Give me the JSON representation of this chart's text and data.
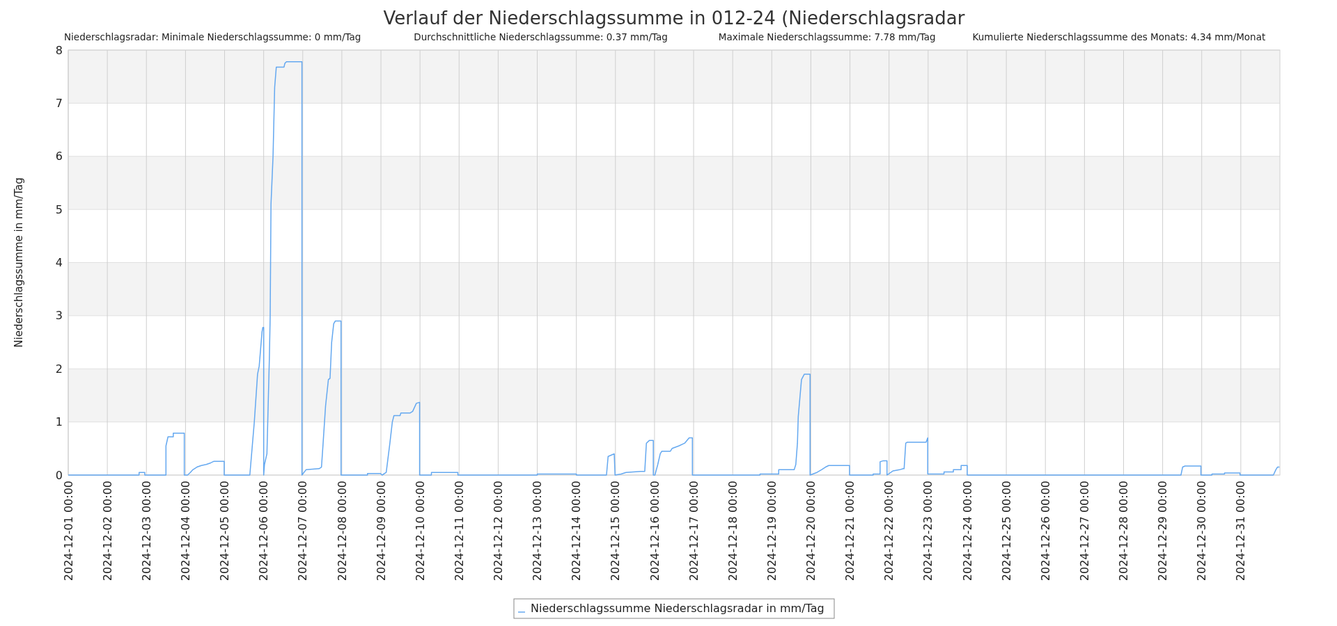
{
  "chart_data": {
    "type": "line",
    "title": "Verlauf der Niederschlagssumme in 012-24 (Niederschlagsradar",
    "annotations": [
      "Niederschlagsradar: Minimale Niederschlagssumme: 0 mm/Tag",
      "Durchschnittliche Niederschlagssumme: 0.37 mm/Tag",
      "Maximale Niederschlagssumme: 7.78 mm/Tag",
      "Kumulierte Niederschlagssumme des Monats: 4.34 mm/Monat"
    ],
    "ylabel": "Niederschlagssumme in mm/Tag",
    "ylim": [
      0,
      8
    ],
    "yticks": [
      0,
      1,
      2,
      3,
      4,
      5,
      6,
      7,
      8
    ],
    "xlim": [
      "2024-12-01T00:00",
      "2025-01-01T00:00"
    ],
    "xticks": [
      {
        "value": "2024-12-01T00:00",
        "label": "2024-12-01 00:00"
      },
      {
        "value": "2024-12-02T00:00",
        "label": "2024-12-02 00:00"
      },
      {
        "value": "2024-12-03T00:00",
        "label": "2024-12-03 00:00"
      },
      {
        "value": "2024-12-04T00:00",
        "label": "2024-12-04 00:00"
      },
      {
        "value": "2024-12-05T00:00",
        "label": "2024-12-05 00:00"
      },
      {
        "value": "2024-12-06T00:00",
        "label": "2024-12-06 00:00"
      },
      {
        "value": "2024-12-07T00:00",
        "label": "2024-12-07 00:00"
      },
      {
        "value": "2024-12-08T00:00",
        "label": "2024-12-08 00:00"
      },
      {
        "value": "2024-12-09T00:00",
        "label": "2024-12-09 00:00"
      },
      {
        "value": "2024-12-10T00:00",
        "label": "2024-12-10 00:00"
      },
      {
        "value": "2024-12-11T00:00",
        "label": "2024-12-11 00:00"
      },
      {
        "value": "2024-12-12T00:00",
        "label": "2024-12-12 00:00"
      },
      {
        "value": "2024-12-13T00:00",
        "label": "2024-12-13 00:00"
      },
      {
        "value": "2024-12-14T00:00",
        "label": "2024-12-14 00:00"
      },
      {
        "value": "2024-12-15T00:00",
        "label": "2024-12-15 00:00"
      },
      {
        "value": "2024-12-16T00:00",
        "label": "2024-12-16 00:00"
      },
      {
        "value": "2024-12-17T00:00",
        "label": "2024-12-17 00:00"
      },
      {
        "value": "2024-12-18T00:00",
        "label": "2024-12-18 00:00"
      },
      {
        "value": "2024-12-19T00:00",
        "label": "2024-12-19 00:00"
      },
      {
        "value": "2024-12-20T00:00",
        "label": "2024-12-20 00:00"
      },
      {
        "value": "2024-12-21T00:00",
        "label": "2024-12-21 00:00"
      },
      {
        "value": "2024-12-22T00:00",
        "label": "2024-12-22 00:00"
      },
      {
        "value": "2024-12-23T00:00",
        "label": "2024-12-23 00:00"
      },
      {
        "value": "2024-12-24T00:00",
        "label": "2024-12-24 00:00"
      },
      {
        "value": "2024-12-25T00:00",
        "label": "2024-12-25 00:00"
      },
      {
        "value": "2024-12-26T00:00",
        "label": "2024-12-26 00:00"
      },
      {
        "value": "2024-12-27T00:00",
        "label": "2024-12-27 00:00"
      },
      {
        "value": "2024-12-28T00:00",
        "label": "2024-12-28 00:00"
      },
      {
        "value": "2024-12-29T00:00",
        "label": "2024-12-29 00:00"
      },
      {
        "value": "2024-12-30T00:00",
        "label": "2024-12-30 00:00"
      },
      {
        "value": "2024-12-31T00:00",
        "label": "2024-12-31 00:00"
      }
    ],
    "grid": true,
    "legend": "bottom",
    "marker": "none",
    "line_style": "solid",
    "series": [
      {
        "name": "Niederschlagssumme Niederschlagsradar in mm/Tag",
        "color": "#64a8f0",
        "x": [
          "2024-12-01T00:00",
          "2024-12-02T19:30",
          "2024-12-02T19:30",
          "2024-12-02T23:00",
          "2024-12-02T23:00",
          "2024-12-03T12:00",
          "2024-12-03T12:00",
          "2024-12-03T13:15",
          "2024-12-03T16:30",
          "2024-12-03T16:30",
          "2024-12-03T23:15",
          "2024-12-03T23:15",
          "2024-12-04T01:15",
          "2024-12-04T03:00",
          "2024-12-04T04:30",
          "2024-12-04T07:00",
          "2024-12-04T09:45",
          "2024-12-04T12:45",
          "2024-12-04T15:30",
          "2024-12-04T17:30",
          "2024-12-04T23:45",
          "2024-12-04T23:45",
          "2024-12-05T15:30",
          "2024-12-05T18:15",
          "2024-12-05T20:15",
          "2024-12-05T21:15",
          "2024-12-05T23:00",
          "2024-12-05T23:30",
          "2024-12-06T00:00",
          "2024-12-06T00:00",
          "2024-12-06T00:30",
          "2024-12-06T02:00",
          "2024-12-06T02:30",
          "2024-12-06T03:30",
          "2024-12-06T04:00",
          "2024-12-06T04:30",
          "2024-12-06T05:45",
          "2024-12-06T06:45",
          "2024-12-06T07:45",
          "2024-12-06T12:30",
          "2024-12-06T13:00",
          "2024-12-06T14:00",
          "2024-12-06T23:30",
          "2024-12-06T23:30",
          "2024-12-07T02:00",
          "2024-12-07T10:00",
          "2024-12-07T11:30",
          "2024-12-07T12:30",
          "2024-12-07T14:00",
          "2024-12-07T15:45",
          "2024-12-07T16:45",
          "2024-12-07T17:45",
          "2024-12-07T19:00",
          "2024-12-07T20:00",
          "2024-12-07T23:30",
          "2024-12-07T23:30",
          "2024-12-08T15:45",
          "2024-12-08T15:45",
          "2024-12-08T23:45",
          "2024-12-09T00:45",
          "2024-12-09T03:15",
          "2024-12-09T05:30",
          "2024-12-09T07:00",
          "2024-12-09T08:00",
          "2024-12-09T11:45",
          "2024-12-09T12:15",
          "2024-12-09T18:00",
          "2024-12-09T19:30",
          "2024-12-09T21:45",
          "2024-12-09T23:45",
          "2024-12-09T23:45",
          "2024-12-10T07:00",
          "2024-12-10T07:00",
          "2024-12-10T23:15",
          "2024-12-10T23:15",
          "2024-12-13T00:00",
          "2024-12-13T00:00",
          "2024-12-14T00:00",
          "2024-12-14T00:00",
          "2024-12-14T18:30",
          "2024-12-14T19:30",
          "2024-12-14T23:15",
          "2024-12-14T23:45",
          "2024-12-15T03:30",
          "2024-12-15T06:30",
          "2024-12-15T15:30",
          "2024-12-15T18:00",
          "2024-12-15T19:00",
          "2024-12-15T20:45",
          "2024-12-15T23:15",
          "2024-12-15T23:15",
          "2024-12-16T00:15",
          "2024-12-16T02:00",
          "2024-12-16T03:30",
          "2024-12-16T04:30",
          "2024-12-16T09:45",
          "2024-12-16T10:45",
          "2024-12-16T15:00",
          "2024-12-16T18:30",
          "2024-12-16T21:15",
          "2024-12-16T23:15",
          "2024-12-16T23:15",
          "2024-12-18T16:45",
          "2024-12-18T16:45",
          "2024-12-19T04:15",
          "2024-12-19T04:15",
          "2024-12-19T13:45",
          "2024-12-19T14:45",
          "2024-12-19T15:45",
          "2024-12-19T16:15",
          "2024-12-19T17:15",
          "2024-12-19T18:15",
          "2024-12-19T20:00",
          "2024-12-19T23:30",
          "2024-12-19T23:30",
          "2024-12-20T03:45",
          "2024-12-20T06:30",
          "2024-12-20T09:00",
          "2024-12-20T11:00",
          "2024-12-20T23:45",
          "2024-12-20T23:45",
          "2024-12-21T14:15",
          "2024-12-21T14:15",
          "2024-12-21T18:30",
          "2024-12-21T18:30",
          "2024-12-21T20:30",
          "2024-12-21T22:45",
          "2024-12-21T22:45",
          "2024-12-22T02:30",
          "2024-12-22T06:30",
          "2024-12-22T08:45",
          "2024-12-22T09:15",
          "2024-12-22T10:15",
          "2024-12-22T11:15",
          "2024-12-22T22:45",
          "2024-12-22T23:45",
          "2024-12-22T23:45",
          "2024-12-23T09:45",
          "2024-12-23T09:45",
          "2024-12-23T15:30",
          "2024-12-23T15:30",
          "2024-12-23T20:15",
          "2024-12-23T20:15",
          "2024-12-24T00:00",
          "2024-12-24T00:00",
          "2024-12-29T11:15",
          "2024-12-29T12:15",
          "2024-12-29T13:45",
          "2024-12-29T23:30",
          "2024-12-29T23:30",
          "2024-12-30T06:15",
          "2024-12-30T06:15",
          "2024-12-30T14:00",
          "2024-12-30T14:00",
          "2024-12-30T23:30",
          "2024-12-30T23:30",
          "2024-12-31T20:00",
          "2024-12-31T21:30",
          "2024-12-31T22:30",
          "2024-12-31T23:45"
        ],
        "values": [
          0,
          0,
          0.05,
          0.05,
          0,
          0,
          0.55,
          0.72,
          0.72,
          0.79,
          0.79,
          0,
          0,
          0.05,
          0.1,
          0.15,
          0.18,
          0.2,
          0.23,
          0.26,
          0.26,
          0,
          0,
          1.0,
          1.9,
          2.05,
          2.7,
          2.78,
          2.78,
          0,
          0.2,
          0.4,
          1.0,
          2.2,
          3.0,
          5.1,
          6.0,
          7.3,
          7.68,
          7.68,
          7.75,
          7.78,
          7.78,
          0,
          0.1,
          0.12,
          0.15,
          0.6,
          1.3,
          1.8,
          1.82,
          2.5,
          2.85,
          2.9,
          2.9,
          0,
          0,
          0.03,
          0.03,
          0,
          0.05,
          0.6,
          1.0,
          1.12,
          1.12,
          1.17,
          1.17,
          1.2,
          1.35,
          1.37,
          0,
          0,
          0.05,
          0.05,
          0,
          0,
          0.02,
          0.02,
          0,
          0,
          0.35,
          0.4,
          0,
          0.02,
          0.05,
          0.07,
          0.07,
          0.6,
          0.65,
          0.65,
          0,
          0,
          0.2,
          0.4,
          0.45,
          0.45,
          0.5,
          0.55,
          0.6,
          0.7,
          0.7,
          0,
          0,
          0.02,
          0.02,
          0.1,
          0.1,
          0.2,
          0.6,
          1.1,
          1.45,
          1.8,
          1.9,
          1.9,
          0,
          0.05,
          0.1,
          0.15,
          0.18,
          0.18,
          0,
          0,
          0.02,
          0.02,
          0.25,
          0.27,
          0.27,
          0,
          0.08,
          0.1,
          0.12,
          0.12,
          0.6,
          0.62,
          0.62,
          0.7,
          0.02,
          0.02,
          0.06,
          0.06,
          0.1,
          0.1,
          0.18,
          0.18,
          0,
          0,
          0.15,
          0.17,
          0.17,
          0,
          0,
          0.02,
          0.02,
          0.04,
          0.04,
          0,
          0,
          0.1,
          0.15,
          0.15
        ]
      }
    ]
  }
}
